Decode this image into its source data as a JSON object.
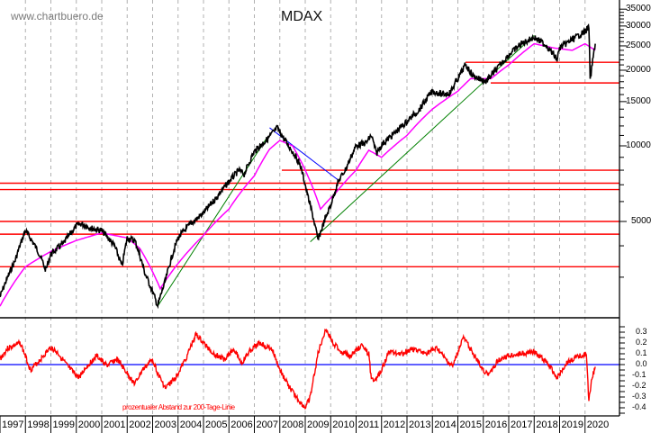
{
  "header": {
    "watermark": "www.chartbuero.de",
    "title": "MDAX"
  },
  "indicator": {
    "label": "prozentualer Abstand zur 200-Tage-Linie"
  },
  "colors": {
    "price": "#000000",
    "ma200": "#ff00ff",
    "support_lines": "#ff0000",
    "uptrend_lines": "#008000",
    "downtrend_line": "#0000ff",
    "indicator_line": "#ff0000",
    "zero_line": "#0000ff",
    "grid": "#b0b0b0"
  },
  "chart_data": [
    {
      "type": "line",
      "title": "MDAX",
      "xlabel": "",
      "ylabel": "",
      "y_scale": "log",
      "ylim": [
        1900,
        37000
      ],
      "y_ticks": [
        35000,
        30000,
        25000,
        20000,
        15000,
        10000,
        5000
      ],
      "x_ticks": [
        "1997",
        "1998",
        "1999",
        "2000",
        "2001",
        "2002",
        "2003",
        "2004",
        "2005",
        "2006",
        "2007",
        "2008",
        "2009",
        "2010",
        "2011",
        "2012",
        "2013",
        "2014",
        "2015",
        "2016",
        "2017",
        "2018",
        "2019",
        "2020"
      ],
      "grid": "vertical dashed per year",
      "series": [
        {
          "name": "MDAX",
          "x": [
            1997.0,
            1997.3,
            1997.6,
            1998.0,
            1998.5,
            1998.8,
            1999.0,
            1999.5,
            2000.0,
            2000.2,
            2000.6,
            2001.0,
            2001.5,
            2001.8,
            2002.0,
            2002.3,
            2002.7,
            2003.2,
            2003.5,
            2004.0,
            2004.5,
            2005.0,
            2005.5,
            2006.0,
            2006.4,
            2006.6,
            2007.0,
            2007.5,
            2007.9,
            2008.2,
            2008.5,
            2008.8,
            2009.1,
            2009.5,
            2010.0,
            2010.3,
            2010.6,
            2011.0,
            2011.4,
            2011.6,
            2011.8,
            2012.0,
            2012.5,
            2013.0,
            2013.5,
            2014.0,
            2014.4,
            2014.7,
            2015.0,
            2015.3,
            2015.6,
            2016.1,
            2016.5,
            2017.0,
            2017.5,
            2018.0,
            2018.5,
            2018.9,
            2019.0,
            2019.5,
            2020.0,
            2020.15,
            2020.2,
            2020.4
          ],
          "values": [
            2500,
            3000,
            3500,
            4600,
            3800,
            3200,
            3700,
            4100,
            4800,
            4900,
            4700,
            4600,
            4000,
            3300,
            4300,
            4200,
            3100,
            2300,
            2900,
            4300,
            4900,
            5400,
            6200,
            7200,
            8000,
            7700,
            9500,
            10600,
            11800,
            10500,
            9500,
            8400,
            6300,
            4200,
            5800,
            7200,
            8100,
            10000,
            10300,
            11000,
            9300,
            10100,
            11200,
            12500,
            14000,
            16500,
            16000,
            16300,
            18500,
            21000,
            19000,
            18000,
            20000,
            23000,
            25500,
            27000,
            25000,
            22000,
            24500,
            26500,
            28500,
            29800,
            18000,
            25500
          ]
        },
        {
          "name": "200-Tage-Linie",
          "x": [
            1997.0,
            1998.0,
            1999.0,
            2000.0,
            2001.0,
            2002.0,
            2002.5,
            2003.3,
            2004.0,
            2005.0,
            2006.0,
            2007.0,
            2007.6,
            2008.0,
            2008.5,
            2009.0,
            2009.6,
            2010.2,
            2011.0,
            2011.5,
            2012.0,
            2013.0,
            2014.0,
            2015.0,
            2015.5,
            2016.3,
            2017.0,
            2018.0,
            2018.8,
            2019.5,
            2020.0,
            2020.4
          ],
          "values": [
            2300,
            3300,
            3800,
            4200,
            4500,
            4300,
            3900,
            2700,
            3400,
            4400,
            5600,
            7600,
            9700,
            10500,
            10000,
            8000,
            5600,
            6500,
            8000,
            9600,
            9000,
            11000,
            14000,
            16500,
            18500,
            18500,
            21000,
            25500,
            24500,
            24000,
            25500,
            24000
          ]
        }
      ],
      "horizontal_lines": [
        21500,
        17800,
        8000,
        7100,
        6700,
        5000,
        4450,
        3300
      ],
      "trend_lines": [
        {
          "color": "green",
          "from": [
            2003.2,
            2300
          ],
          "to": [
            2007.5,
            10800
          ]
        },
        {
          "color": "green",
          "from": [
            2009.2,
            4150
          ],
          "to": [
            2018.0,
            27500
          ]
        },
        {
          "color": "blue",
          "from": [
            2007.6,
            11800
          ],
          "to": [
            2010.3,
            7300
          ]
        }
      ]
    },
    {
      "type": "line",
      "title": "prozentualer Abstand zur 200-Tage-Linie",
      "ylim": [
        -0.45,
        0.35
      ],
      "y_ticks": [
        0.3,
        0.2,
        0.1,
        0.0,
        -0.1,
        -0.2,
        -0.3,
        -0.4
      ],
      "series": [
        {
          "name": "Abstand zur 200-Tage-Linie",
          "x": [
            1997.0,
            1997.3,
            1997.8,
            1998.2,
            1998.6,
            1999.0,
            1999.3,
            1999.7,
            2000.1,
            2000.4,
            2000.8,
            2001.2,
            2001.6,
            2001.9,
            2002.3,
            2002.6,
            2003.0,
            2003.2,
            2003.5,
            2003.9,
            2004.3,
            2004.7,
            2005.0,
            2005.4,
            2005.8,
            2006.2,
            2006.5,
            2006.8,
            2007.2,
            2007.7,
            2008.0,
            2008.4,
            2008.8,
            2009.0,
            2009.2,
            2009.5,
            2009.8,
            2010.1,
            2010.4,
            2010.8,
            2011.2,
            2011.5,
            2011.6,
            2011.9,
            2012.3,
            2012.8,
            2013.2,
            2013.7,
            2014.2,
            2014.5,
            2014.8,
            2015.2,
            2015.5,
            2015.9,
            2016.2,
            2016.6,
            2017.0,
            2017.5,
            2018.0,
            2018.5,
            2018.9,
            2019.3,
            2019.8,
            2020.05,
            2020.15,
            2020.25,
            2020.4
          ],
          "values": [
            0.05,
            0.15,
            0.2,
            -0.05,
            0.05,
            0.16,
            0.1,
            -0.03,
            -0.12,
            -0.02,
            0.08,
            -0.01,
            0.05,
            -0.05,
            -0.18,
            -0.05,
            0.05,
            -0.08,
            -0.22,
            -0.12,
            0.05,
            0.28,
            0.2,
            0.1,
            0.05,
            0.15,
            0.01,
            0.12,
            0.2,
            0.14,
            -0.05,
            -0.22,
            -0.35,
            -0.4,
            -0.3,
            0.1,
            0.33,
            0.2,
            0.12,
            0.08,
            0.18,
            0.1,
            -0.15,
            -0.1,
            0.12,
            0.1,
            0.15,
            0.1,
            0.15,
            0.05,
            -0.02,
            0.25,
            0.15,
            -0.02,
            -0.1,
            0.05,
            0.08,
            0.1,
            0.12,
            0.02,
            -0.12,
            0.02,
            0.08,
            0.1,
            -0.33,
            -0.15,
            -0.02
          ]
        }
      ],
      "horizontal_lines": [
        0.0
      ]
    }
  ]
}
